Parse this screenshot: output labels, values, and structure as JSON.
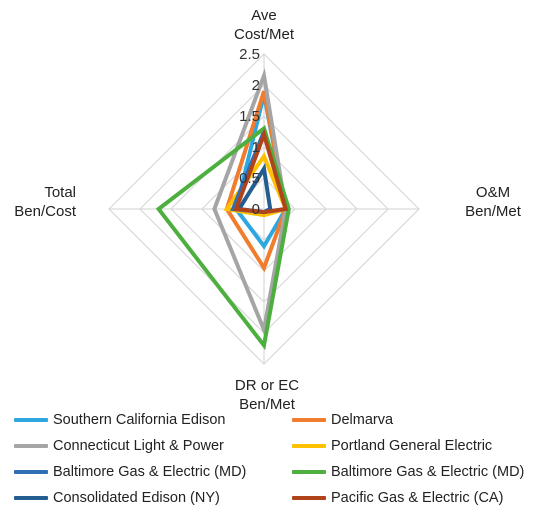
{
  "chart_data": {
    "type": "radar",
    "axes": [
      "Ave Cost/Met",
      "O&M Ben/Met",
      "DR or EC Ben/Met",
      "Total Ben/Cost"
    ],
    "axis_labels": [
      [
        "Ave",
        "Cost/Met"
      ],
      [
        "O&M",
        "Ben/Met"
      ],
      [
        "DR or EC",
        "Ben/Met"
      ],
      [
        "Total",
        "Ben/Cost"
      ]
    ],
    "rlim": [
      0,
      2.5
    ],
    "ticks": [
      "0",
      "0.5",
      "1",
      "1.5",
      "2",
      "2.5"
    ],
    "tick_values": [
      0,
      0.5,
      1,
      1.5,
      2,
      2.5
    ],
    "grid": true,
    "legend_position": "bottom",
    "series": [
      {
        "name": "Southern California Edison",
        "color": "#2ea7e0",
        "values": [
          1.85,
          0.35,
          0.6,
          0.45
        ]
      },
      {
        "name": "Delmarva",
        "color": "#f07c2e",
        "values": [
          1.9,
          0.35,
          0.95,
          0.6
        ]
      },
      {
        "name": "Connecticut Light & Power",
        "color": "#a5a5a5",
        "values": [
          2.15,
          0.35,
          1.95,
          0.8
        ]
      },
      {
        "name": "Portland General Electric",
        "color": "#ffc000",
        "values": [
          0.85,
          0.35,
          0.1,
          0.6
        ]
      },
      {
        "name": "Baltimore Gas & Electric (MD)",
        "color": "#2e6fb8",
        "values": [
          1.25,
          0.35,
          0.05,
          0.5
        ]
      },
      {
        "name": "Baltimore Gas & Electric (MD)",
        "color": "#4caf3e",
        "values": [
          1.3,
          0.4,
          2.2,
          1.7
        ]
      },
      {
        "name": "Consolidated Edison (NY)",
        "color": "#245d8f",
        "values": [
          0.65,
          0.1,
          0.05,
          0.4
        ]
      },
      {
        "name": "Pacific Gas & Electric (CA)",
        "color": "#b1431a",
        "values": [
          1.2,
          0.35,
          0.05,
          0.45
        ]
      }
    ]
  }
}
